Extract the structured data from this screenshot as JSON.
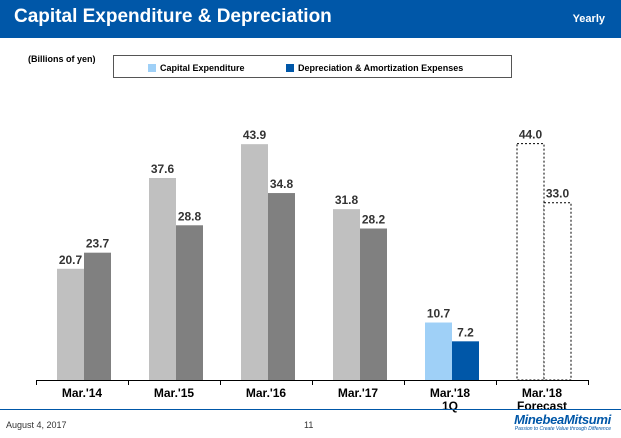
{
  "header": {
    "title": "Capital Expenditure & Depreciation",
    "period": "Yearly"
  },
  "unit_label": "(Billions of yen)",
  "footer": {
    "date": "August 4, 2017",
    "page": "11",
    "logo_name": "MinebeaMitsumi",
    "logo_tagline": "Passion to Create Value through Difference"
  },
  "colors": {
    "header_bg": "#0057a8",
    "capex": "#c0c0c0",
    "depreciation": "#808080",
    "capex_1q": "#9fd0f7",
    "depreciation_1q": "#0057a8",
    "forecast_border": "#000000"
  },
  "chart_data": {
    "type": "bar",
    "title": "Capital Expenditure & Depreciation",
    "ylabel": "Billions of yen",
    "ylim": [
      0,
      50
    ],
    "grid": false,
    "legend_position": "top",
    "categories": [
      "Mar.'14",
      "Mar.'15",
      "Mar.'16",
      "Mar.'17",
      "Mar.'18\n1Q",
      "Mar.'18\nForecast"
    ],
    "category_labels": [
      [
        "Mar.'14"
      ],
      [
        "Mar.'15"
      ],
      [
        "Mar.'16"
      ],
      [
        "Mar.'17"
      ],
      [
        "Mar.'18",
        "1Q"
      ],
      [
        "Mar.'18",
        "Forecast"
      ]
    ],
    "series": [
      {
        "name": "Capital Expenditure",
        "values": [
          20.7,
          37.6,
          43.9,
          31.8,
          10.7,
          44.0
        ],
        "labels": [
          "20.7",
          "37.6",
          "43.9",
          "31.8",
          "10.7",
          "44.0"
        ]
      },
      {
        "name": "Depreciation & Amortization Expenses",
        "values": [
          23.7,
          28.8,
          34.8,
          28.2,
          7.2,
          33.0
        ],
        "labels": [
          "23.7",
          "28.8",
          "34.8",
          "28.2",
          "7.2",
          "33.0"
        ]
      }
    ],
    "bar_styles": [
      "actual",
      "actual",
      "actual",
      "actual",
      "quarter",
      "forecast"
    ]
  }
}
